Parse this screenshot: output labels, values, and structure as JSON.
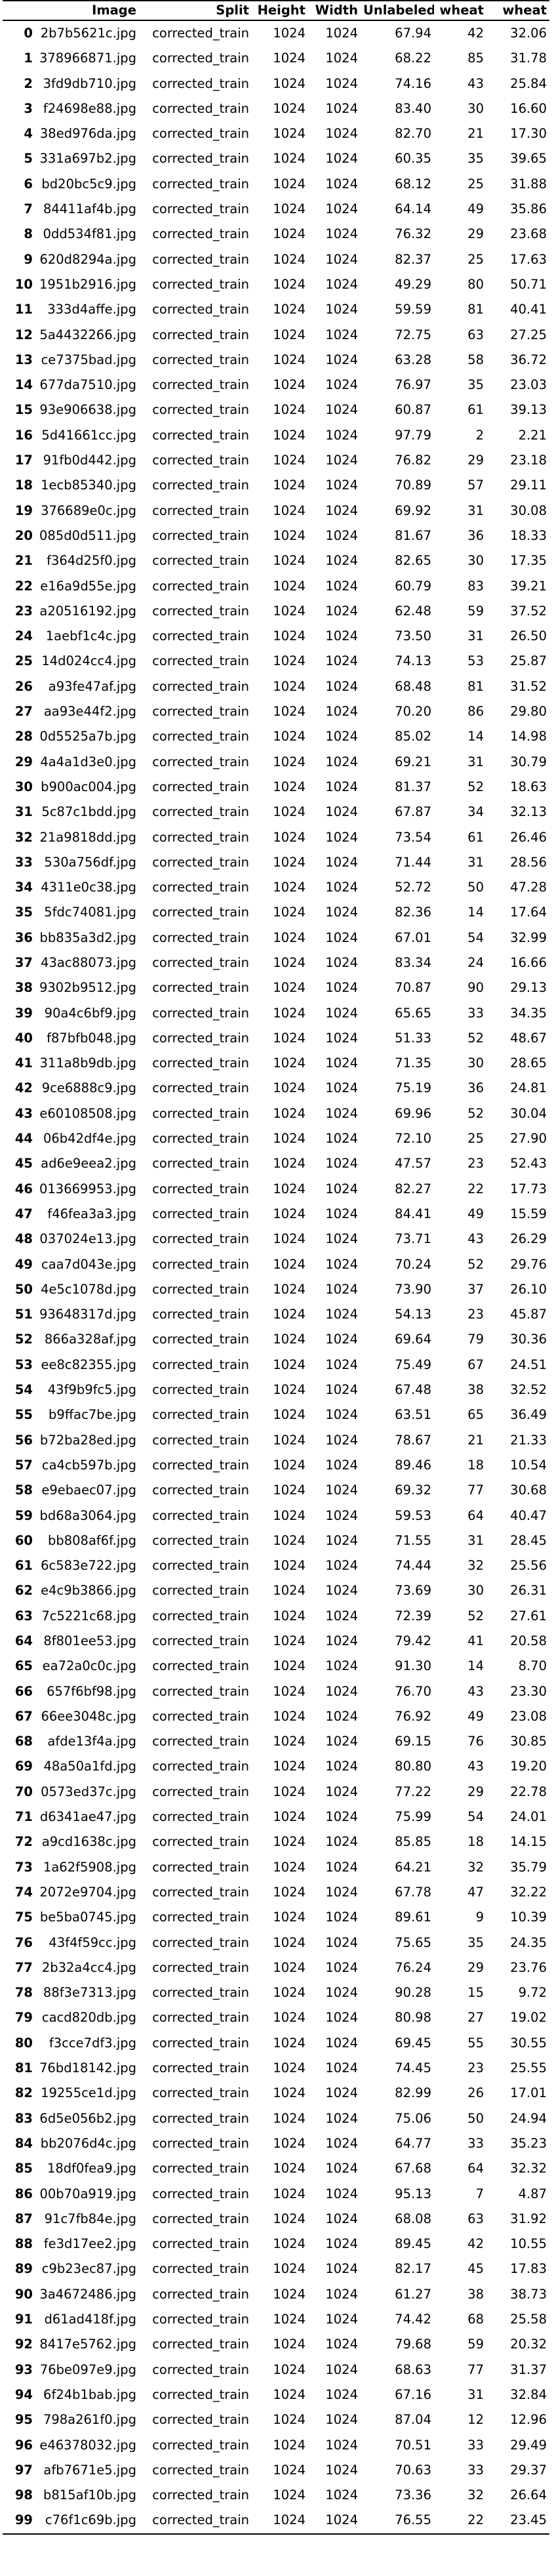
{
  "columns": [
    "",
    "Image",
    "Split",
    "Height",
    "Width",
    "Unlabeled",
    "wheat",
    "wheat"
  ],
  "rows": [
    [
      "0",
      "2b7b5621c.jpg",
      "corrected_train",
      "1024",
      "1024",
      "67.94",
      "42",
      "32.06"
    ],
    [
      "1",
      "378966871.jpg",
      "corrected_train",
      "1024",
      "1024",
      "68.22",
      "85",
      "31.78"
    ],
    [
      "2",
      "3fd9db710.jpg",
      "corrected_train",
      "1024",
      "1024",
      "74.16",
      "43",
      "25.84"
    ],
    [
      "3",
      "f24698e88.jpg",
      "corrected_train",
      "1024",
      "1024",
      "83.40",
      "30",
      "16.60"
    ],
    [
      "4",
      "38ed976da.jpg",
      "corrected_train",
      "1024",
      "1024",
      "82.70",
      "21",
      "17.30"
    ],
    [
      "5",
      "331a697b2.jpg",
      "corrected_train",
      "1024",
      "1024",
      "60.35",
      "35",
      "39.65"
    ],
    [
      "6",
      "bd20bc5c9.jpg",
      "corrected_train",
      "1024",
      "1024",
      "68.12",
      "25",
      "31.88"
    ],
    [
      "7",
      "84411af4b.jpg",
      "corrected_train",
      "1024",
      "1024",
      "64.14",
      "49",
      "35.86"
    ],
    [
      "8",
      "0dd534f81.jpg",
      "corrected_train",
      "1024",
      "1024",
      "76.32",
      "29",
      "23.68"
    ],
    [
      "9",
      "620d8294a.jpg",
      "corrected_train",
      "1024",
      "1024",
      "82.37",
      "25",
      "17.63"
    ],
    [
      "10",
      "1951b2916.jpg",
      "corrected_train",
      "1024",
      "1024",
      "49.29",
      "80",
      "50.71"
    ],
    [
      "11",
      "333d4affe.jpg",
      "corrected_train",
      "1024",
      "1024",
      "59.59",
      "81",
      "40.41"
    ],
    [
      "12",
      "5a4432266.jpg",
      "corrected_train",
      "1024",
      "1024",
      "72.75",
      "63",
      "27.25"
    ],
    [
      "13",
      "ce7375bad.jpg",
      "corrected_train",
      "1024",
      "1024",
      "63.28",
      "58",
      "36.72"
    ],
    [
      "14",
      "677da7510.jpg",
      "corrected_train",
      "1024",
      "1024",
      "76.97",
      "35",
      "23.03"
    ],
    [
      "15",
      "93e906638.jpg",
      "corrected_train",
      "1024",
      "1024",
      "60.87",
      "61",
      "39.13"
    ],
    [
      "16",
      "5d41661cc.jpg",
      "corrected_train",
      "1024",
      "1024",
      "97.79",
      "2",
      "2.21"
    ],
    [
      "17",
      "91fb0d442.jpg",
      "corrected_train",
      "1024",
      "1024",
      "76.82",
      "29",
      "23.18"
    ],
    [
      "18",
      "1ecb85340.jpg",
      "corrected_train",
      "1024",
      "1024",
      "70.89",
      "57",
      "29.11"
    ],
    [
      "19",
      "376689e0c.jpg",
      "corrected_train",
      "1024",
      "1024",
      "69.92",
      "31",
      "30.08"
    ],
    [
      "20",
      "085d0d511.jpg",
      "corrected_train",
      "1024",
      "1024",
      "81.67",
      "36",
      "18.33"
    ],
    [
      "21",
      "f364d25f0.jpg",
      "corrected_train",
      "1024",
      "1024",
      "82.65",
      "30",
      "17.35"
    ],
    [
      "22",
      "e16a9d55e.jpg",
      "corrected_train",
      "1024",
      "1024",
      "60.79",
      "83",
      "39.21"
    ],
    [
      "23",
      "a20516192.jpg",
      "corrected_train",
      "1024",
      "1024",
      "62.48",
      "59",
      "37.52"
    ],
    [
      "24",
      "1aebf1c4c.jpg",
      "corrected_train",
      "1024",
      "1024",
      "73.50",
      "31",
      "26.50"
    ],
    [
      "25",
      "14d024cc4.jpg",
      "corrected_train",
      "1024",
      "1024",
      "74.13",
      "53",
      "25.87"
    ],
    [
      "26",
      "a93fe47af.jpg",
      "corrected_train",
      "1024",
      "1024",
      "68.48",
      "81",
      "31.52"
    ],
    [
      "27",
      "aa93e44f2.jpg",
      "corrected_train",
      "1024",
      "1024",
      "70.20",
      "86",
      "29.80"
    ],
    [
      "28",
      "0d5525a7b.jpg",
      "corrected_train",
      "1024",
      "1024",
      "85.02",
      "14",
      "14.98"
    ],
    [
      "29",
      "4a4a1d3e0.jpg",
      "corrected_train",
      "1024",
      "1024",
      "69.21",
      "31",
      "30.79"
    ],
    [
      "30",
      "b900ac004.jpg",
      "corrected_train",
      "1024",
      "1024",
      "81.37",
      "52",
      "18.63"
    ],
    [
      "31",
      "5c87c1bdd.jpg",
      "corrected_train",
      "1024",
      "1024",
      "67.87",
      "34",
      "32.13"
    ],
    [
      "32",
      "21a9818dd.jpg",
      "corrected_train",
      "1024",
      "1024",
      "73.54",
      "61",
      "26.46"
    ],
    [
      "33",
      "530a756df.jpg",
      "corrected_train",
      "1024",
      "1024",
      "71.44",
      "31",
      "28.56"
    ],
    [
      "34",
      "4311e0c38.jpg",
      "corrected_train",
      "1024",
      "1024",
      "52.72",
      "50",
      "47.28"
    ],
    [
      "35",
      "5fdc74081.jpg",
      "corrected_train",
      "1024",
      "1024",
      "82.36",
      "14",
      "17.64"
    ],
    [
      "36",
      "bb835a3d2.jpg",
      "corrected_train",
      "1024",
      "1024",
      "67.01",
      "54",
      "32.99"
    ],
    [
      "37",
      "43ac88073.jpg",
      "corrected_train",
      "1024",
      "1024",
      "83.34",
      "24",
      "16.66"
    ],
    [
      "38",
      "9302b9512.jpg",
      "corrected_train",
      "1024",
      "1024",
      "70.87",
      "90",
      "29.13"
    ],
    [
      "39",
      "90a4c6bf9.jpg",
      "corrected_train",
      "1024",
      "1024",
      "65.65",
      "33",
      "34.35"
    ],
    [
      "40",
      "f87bfb048.jpg",
      "corrected_train",
      "1024",
      "1024",
      "51.33",
      "52",
      "48.67"
    ],
    [
      "41",
      "311a8b9db.jpg",
      "corrected_train",
      "1024",
      "1024",
      "71.35",
      "30",
      "28.65"
    ],
    [
      "42",
      "9ce6888c9.jpg",
      "corrected_train",
      "1024",
      "1024",
      "75.19",
      "36",
      "24.81"
    ],
    [
      "43",
      "e60108508.jpg",
      "corrected_train",
      "1024",
      "1024",
      "69.96",
      "52",
      "30.04"
    ],
    [
      "44",
      "06b42df4e.jpg",
      "corrected_train",
      "1024",
      "1024",
      "72.10",
      "25",
      "27.90"
    ],
    [
      "45",
      "ad6e9eea2.jpg",
      "corrected_train",
      "1024",
      "1024",
      "47.57",
      "23",
      "52.43"
    ],
    [
      "46",
      "013669953.jpg",
      "corrected_train",
      "1024",
      "1024",
      "82.27",
      "22",
      "17.73"
    ],
    [
      "47",
      "f46fea3a3.jpg",
      "corrected_train",
      "1024",
      "1024",
      "84.41",
      "49",
      "15.59"
    ],
    [
      "48",
      "037024e13.jpg",
      "corrected_train",
      "1024",
      "1024",
      "73.71",
      "43",
      "26.29"
    ],
    [
      "49",
      "caa7d043e.jpg",
      "corrected_train",
      "1024",
      "1024",
      "70.24",
      "52",
      "29.76"
    ],
    [
      "50",
      "4e5c1078d.jpg",
      "corrected_train",
      "1024",
      "1024",
      "73.90",
      "37",
      "26.10"
    ],
    [
      "51",
      "93648317d.jpg",
      "corrected_train",
      "1024",
      "1024",
      "54.13",
      "23",
      "45.87"
    ],
    [
      "52",
      "866a328af.jpg",
      "corrected_train",
      "1024",
      "1024",
      "69.64",
      "79",
      "30.36"
    ],
    [
      "53",
      "ee8c82355.jpg",
      "corrected_train",
      "1024",
      "1024",
      "75.49",
      "67",
      "24.51"
    ],
    [
      "54",
      "43f9b9fc5.jpg",
      "corrected_train",
      "1024",
      "1024",
      "67.48",
      "38",
      "32.52"
    ],
    [
      "55",
      "b9ffac7be.jpg",
      "corrected_train",
      "1024",
      "1024",
      "63.51",
      "65",
      "36.49"
    ],
    [
      "56",
      "b72ba28ed.jpg",
      "corrected_train",
      "1024",
      "1024",
      "78.67",
      "21",
      "21.33"
    ],
    [
      "57",
      "ca4cb597b.jpg",
      "corrected_train",
      "1024",
      "1024",
      "89.46",
      "18",
      "10.54"
    ],
    [
      "58",
      "e9ebaec07.jpg",
      "corrected_train",
      "1024",
      "1024",
      "69.32",
      "77",
      "30.68"
    ],
    [
      "59",
      "bd68a3064.jpg",
      "corrected_train",
      "1024",
      "1024",
      "59.53",
      "64",
      "40.47"
    ],
    [
      "60",
      "bb808af6f.jpg",
      "corrected_train",
      "1024",
      "1024",
      "71.55",
      "31",
      "28.45"
    ],
    [
      "61",
      "6c583e722.jpg",
      "corrected_train",
      "1024",
      "1024",
      "74.44",
      "32",
      "25.56"
    ],
    [
      "62",
      "e4c9b3866.jpg",
      "corrected_train",
      "1024",
      "1024",
      "73.69",
      "30",
      "26.31"
    ],
    [
      "63",
      "7c5221c68.jpg",
      "corrected_train",
      "1024",
      "1024",
      "72.39",
      "52",
      "27.61"
    ],
    [
      "64",
      "8f801ee53.jpg",
      "corrected_train",
      "1024",
      "1024",
      "79.42",
      "41",
      "20.58"
    ],
    [
      "65",
      "ea72a0c0c.jpg",
      "corrected_train",
      "1024",
      "1024",
      "91.30",
      "14",
      "8.70"
    ],
    [
      "66",
      "657f6bf98.jpg",
      "corrected_train",
      "1024",
      "1024",
      "76.70",
      "43",
      "23.30"
    ],
    [
      "67",
      "66ee3048c.jpg",
      "corrected_train",
      "1024",
      "1024",
      "76.92",
      "49",
      "23.08"
    ],
    [
      "68",
      "afde13f4a.jpg",
      "corrected_train",
      "1024",
      "1024",
      "69.15",
      "76",
      "30.85"
    ],
    [
      "69",
      "48a50a1fd.jpg",
      "corrected_train",
      "1024",
      "1024",
      "80.80",
      "43",
      "19.20"
    ],
    [
      "70",
      "0573ed37c.jpg",
      "corrected_train",
      "1024",
      "1024",
      "77.22",
      "29",
      "22.78"
    ],
    [
      "71",
      "d6341ae47.jpg",
      "corrected_train",
      "1024",
      "1024",
      "75.99",
      "54",
      "24.01"
    ],
    [
      "72",
      "a9cd1638c.jpg",
      "corrected_train",
      "1024",
      "1024",
      "85.85",
      "18",
      "14.15"
    ],
    [
      "73",
      "1a62f5908.jpg",
      "corrected_train",
      "1024",
      "1024",
      "64.21",
      "32",
      "35.79"
    ],
    [
      "74",
      "2072e9704.jpg",
      "corrected_train",
      "1024",
      "1024",
      "67.78",
      "47",
      "32.22"
    ],
    [
      "75",
      "be5ba0745.jpg",
      "corrected_train",
      "1024",
      "1024",
      "89.61",
      "9",
      "10.39"
    ],
    [
      "76",
      "43f4f59cc.jpg",
      "corrected_train",
      "1024",
      "1024",
      "75.65",
      "35",
      "24.35"
    ],
    [
      "77",
      "2b32a4cc4.jpg",
      "corrected_train",
      "1024",
      "1024",
      "76.24",
      "29",
      "23.76"
    ],
    [
      "78",
      "88f3e7313.jpg",
      "corrected_train",
      "1024",
      "1024",
      "90.28",
      "15",
      "9.72"
    ],
    [
      "79",
      "cacd820db.jpg",
      "corrected_train",
      "1024",
      "1024",
      "80.98",
      "27",
      "19.02"
    ],
    [
      "80",
      "f3cce7df3.jpg",
      "corrected_train",
      "1024",
      "1024",
      "69.45",
      "55",
      "30.55"
    ],
    [
      "81",
      "76bd18142.jpg",
      "corrected_train",
      "1024",
      "1024",
      "74.45",
      "23",
      "25.55"
    ],
    [
      "82",
      "19255ce1d.jpg",
      "corrected_train",
      "1024",
      "1024",
      "82.99",
      "26",
      "17.01"
    ],
    [
      "83",
      "6d5e056b2.jpg",
      "corrected_train",
      "1024",
      "1024",
      "75.06",
      "50",
      "24.94"
    ],
    [
      "84",
      "bb2076d4c.jpg",
      "corrected_train",
      "1024",
      "1024",
      "64.77",
      "33",
      "35.23"
    ],
    [
      "85",
      "18df0fea9.jpg",
      "corrected_train",
      "1024",
      "1024",
      "67.68",
      "64",
      "32.32"
    ],
    [
      "86",
      "00b70a919.jpg",
      "corrected_train",
      "1024",
      "1024",
      "95.13",
      "7",
      "4.87"
    ],
    [
      "87",
      "91c7fb84e.jpg",
      "corrected_train",
      "1024",
      "1024",
      "68.08",
      "63",
      "31.92"
    ],
    [
      "88",
      "fe3d17ee2.jpg",
      "corrected_train",
      "1024",
      "1024",
      "89.45",
      "42",
      "10.55"
    ],
    [
      "89",
      "c9b23ec87.jpg",
      "corrected_train",
      "1024",
      "1024",
      "82.17",
      "45",
      "17.83"
    ],
    [
      "90",
      "3a4672486.jpg",
      "corrected_train",
      "1024",
      "1024",
      "61.27",
      "38",
      "38.73"
    ],
    [
      "91",
      "d61ad418f.jpg",
      "corrected_train",
      "1024",
      "1024",
      "74.42",
      "68",
      "25.58"
    ],
    [
      "92",
      "8417e5762.jpg",
      "corrected_train",
      "1024",
      "1024",
      "79.68",
      "59",
      "20.32"
    ],
    [
      "93",
      "76be097e9.jpg",
      "corrected_train",
      "1024",
      "1024",
      "68.63",
      "77",
      "31.37"
    ],
    [
      "94",
      "6f24b1bab.jpg",
      "corrected_train",
      "1024",
      "1024",
      "67.16",
      "31",
      "32.84"
    ],
    [
      "95",
      "798a261f0.jpg",
      "corrected_train",
      "1024",
      "1024",
      "87.04",
      "12",
      "12.96"
    ],
    [
      "96",
      "e46378032.jpg",
      "corrected_train",
      "1024",
      "1024",
      "70.51",
      "33",
      "29.49"
    ],
    [
      "97",
      "afb7671e5.jpg",
      "corrected_train",
      "1024",
      "1024",
      "70.63",
      "33",
      "29.37"
    ],
    [
      "98",
      "b815af10b.jpg",
      "corrected_train",
      "1024",
      "1024",
      "73.36",
      "32",
      "26.64"
    ],
    [
      "99",
      "c76f1c69b.jpg",
      "corrected_train",
      "1024",
      "1024",
      "76.55",
      "22",
      "23.45"
    ]
  ]
}
